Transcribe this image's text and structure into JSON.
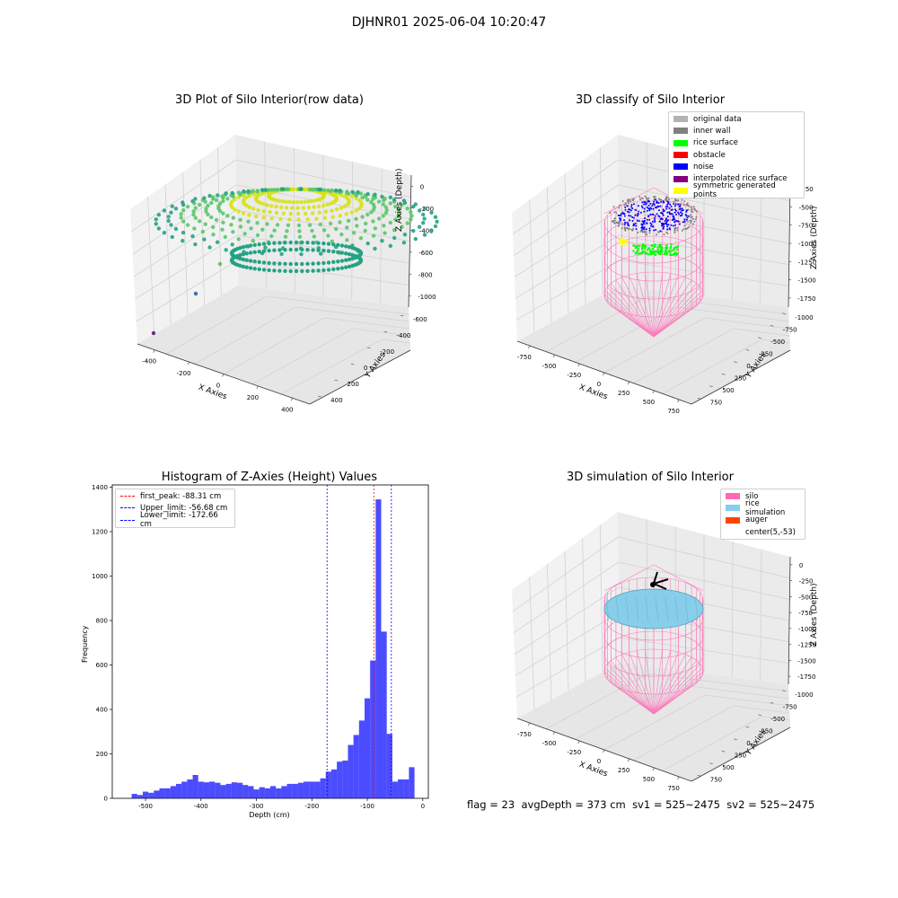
{
  "suptitle": "DJHNR01 2025-06-04 10:20:47",
  "footer": {
    "flag": "flag = 23",
    "avg": "avgDepth = 373 cm",
    "sv1": "sv1 = 525~2475",
    "sv2": "sv2 = 525~2475"
  },
  "chart_data": [
    {
      "type": "scatter",
      "title": "3D Plot of Silo Interior(row data)",
      "xlabel": "X Axies",
      "ylabel": "Y Axies",
      "zlabel": "Z Axies (Depth)",
      "x_ticks": [
        "-400",
        "-200",
        "0",
        "200",
        "400"
      ],
      "y_ticks": [
        "400",
        "200",
        "0",
        "-200",
        "-400",
        "-600"
      ],
      "z_ticks": [
        "0",
        "-200",
        "-400",
        "-600",
        "-800",
        "-1000"
      ],
      "colormap": "viridis",
      "colors": {
        "high": "#d7e21a",
        "mid": "#5bc76b",
        "low": "#23a383",
        "outlier1": "#3b6fa6",
        "outlier2": "#6a2d83"
      }
    },
    {
      "type": "scatter",
      "title": "3D classify of Silo Interior",
      "xlabel": "X Axies",
      "ylabel": "Y Axies",
      "zlabel": "Z Axies (Depth)",
      "x_ticks": [
        "-750",
        "-500",
        "-250",
        "0",
        "250",
        "500",
        "750"
      ],
      "y_ticks": [
        "750",
        "500",
        "250",
        "0",
        "-250",
        "-500",
        "-750",
        "-1000"
      ],
      "z_ticks": [
        "-250",
        "-500",
        "-750",
        "-1000",
        "-1250",
        "-1500",
        "-1750"
      ],
      "legend": [
        {
          "label": "original data",
          "color": "#b3b3b3"
        },
        {
          "label": "inner wall",
          "color": "#808080"
        },
        {
          "label": "rice surface",
          "color": "#00ff00"
        },
        {
          "label": "obstacle",
          "color": "#ff0000"
        },
        {
          "label": "noise",
          "color": "#0000ff"
        },
        {
          "label": "interpolated rice surface",
          "color": "#800080"
        },
        {
          "label": "symmetric generated points",
          "color": "#ffff00"
        }
      ]
    },
    {
      "type": "bar",
      "title": "Histogram of Z-Axies (Height) Values",
      "xlabel": "Depth (cm)",
      "ylabel": "Frequency",
      "xlim": [
        -560,
        10
      ],
      "ylim": [
        0,
        1410
      ],
      "x_ticks": [
        -500,
        -400,
        -300,
        -200,
        -100,
        0
      ],
      "y_ticks": [
        0,
        200,
        400,
        600,
        800,
        1000,
        1200,
        1400
      ],
      "bin_width": 10,
      "bar_color": "#0000ff",
      "bin_starts": [
        -525,
        -515,
        -505,
        -495,
        -485,
        -475,
        -465,
        -455,
        -445,
        -435,
        -425,
        -415,
        -405,
        -395,
        -385,
        -375,
        -365,
        -355,
        -345,
        -335,
        -325,
        -315,
        -305,
        -295,
        -285,
        -275,
        -265,
        -255,
        -245,
        -235,
        -225,
        -215,
        -205,
        -195,
        -185,
        -175,
        -165,
        -155,
        -145,
        -135,
        -125,
        -115,
        -105,
        -95,
        -85,
        -75,
        -65,
        -55,
        -45,
        -35,
        -25
      ],
      "counts": [
        20,
        15,
        30,
        25,
        35,
        45,
        45,
        55,
        65,
        75,
        85,
        105,
        75,
        72,
        75,
        70,
        60,
        65,
        72,
        70,
        60,
        55,
        40,
        50,
        45,
        55,
        45,
        55,
        65,
        65,
        70,
        75,
        75,
        75,
        90,
        120,
        130,
        165,
        170,
        240,
        285,
        350,
        450,
        620,
        1345,
        750,
        290,
        75,
        85,
        85,
        140
      ],
      "lines": [
        {
          "label": "first_peak: -88.31 cm",
          "x": -88.31,
          "color": "#ff0000"
        },
        {
          "label": "Upper_limit: -56.68 cm",
          "x": -56.68,
          "color": "#0000ff"
        },
        {
          "label": "Lower_limit: -172.66 cm",
          "x": -172.66,
          "color": "#0000ff"
        }
      ]
    },
    {
      "type": "scatter",
      "title": "3D simulation of Silo Interior",
      "xlabel": "X Axies",
      "ylabel": "Y Axies",
      "zlabel": "Z Axies (Depth)",
      "x_ticks": [
        "-750",
        "-500",
        "-250",
        "0",
        "250",
        "500",
        "750"
      ],
      "y_ticks": [
        "750",
        "500",
        "250",
        "0",
        "-250",
        "-500",
        "-750",
        "-1000"
      ],
      "z_ticks": [
        "0",
        "-250",
        "-500",
        "-750",
        "-1000",
        "-1250",
        "-1500",
        "-1750"
      ],
      "legend": [
        {
          "label": "silo",
          "color": "#ff69b4"
        },
        {
          "label": "rice simulation",
          "color": "#87ceeb"
        },
        {
          "label": "auger",
          "color": "#ff4500"
        },
        {
          "label": "center(5,-53)",
          "color": "#ffffff"
        }
      ]
    }
  ]
}
